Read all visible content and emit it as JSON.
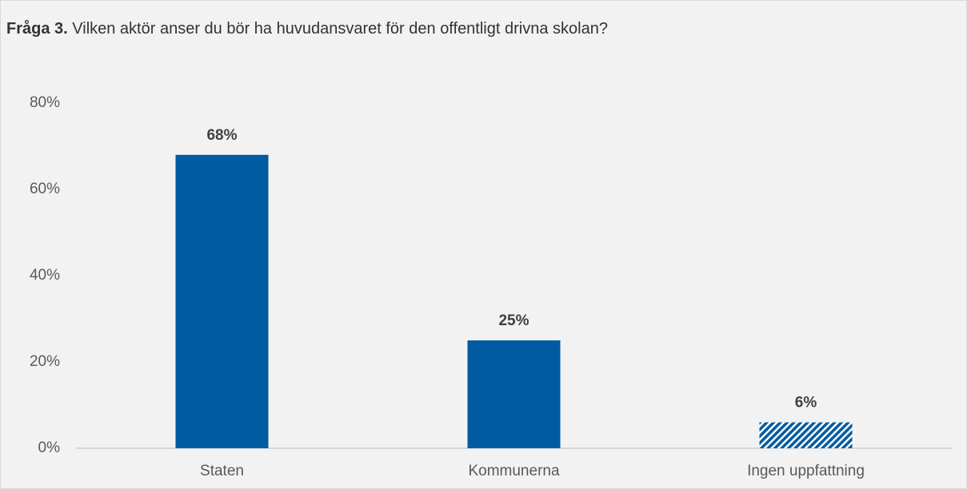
{
  "chart_data": {
    "type": "bar",
    "title_lead": "Fråga 3.",
    "title": "Vilken aktör anser du bör ha huvudansvaret för den offentligt drivna skolan?",
    "categories": [
      "Staten",
      "Kommunerna",
      "Ingen uppfattning"
    ],
    "values": [
      68,
      25,
      6
    ],
    "value_labels": [
      "68%",
      "25%",
      "6%"
    ],
    "color": "#005ba1",
    "patterns": [
      "solid",
      "solid",
      "hatch"
    ],
    "ylim": [
      0,
      80
    ],
    "yticks": [
      {
        "value": 0,
        "label": "0%"
      },
      {
        "value": 20,
        "label": "20%"
      },
      {
        "value": 40,
        "label": "40%"
      },
      {
        "value": 60,
        "label": "60%"
      },
      {
        "value": 80,
        "label": "80%"
      }
    ],
    "grid": false
  }
}
